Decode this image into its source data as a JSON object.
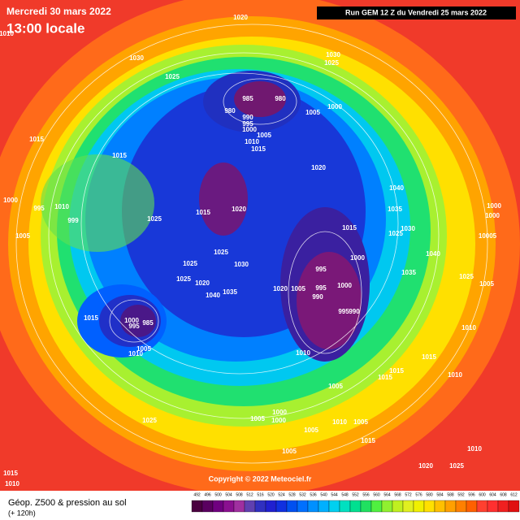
{
  "header": {
    "date": "Mercredi 30 mars 2022",
    "time": "13:00 locale",
    "run": "Run GEM 12 Z du Vendredi 25 mars 2022"
  },
  "footer": {
    "title": "Géop. Z500 & pression au sol",
    "lead": "(+ 120h)",
    "copyright": "Copyright © 2022 Meteociel.fr"
  },
  "isobars": [
    "1020",
    "1010",
    "1030",
    "1030",
    "1025",
    "1025",
    "985",
    "980",
    "980",
    "1000",
    "990",
    "995",
    "1005",
    "1000",
    "1005",
    "1010",
    "1015",
    "1015",
    "1015",
    "1020",
    "1040",
    "1000",
    "995",
    "1010",
    "999",
    "1015",
    "1020",
    "1025",
    "1035",
    "1000",
    "1005",
    "1015",
    "1025",
    "1030",
    "1000",
    "10005",
    "1025",
    "1030",
    "1000",
    "1040",
    "1025",
    "1035",
    "995",
    "1025",
    "1000",
    "1020",
    "1005",
    "995",
    "1025",
    "1005",
    "1020",
    "1035",
    "1040",
    "990",
    "1015",
    "1000",
    "995",
    "985",
    "995",
    "990",
    "1010",
    "1005",
    "1010",
    "1010",
    "1015",
    "1015",
    "1015",
    "1005",
    "1010",
    "1000",
    "1005",
    "1025",
    "1000",
    "1005",
    "1010",
    "1005",
    "1015",
    "1005",
    "1010",
    "1020",
    "1025",
    "1015",
    "1010"
  ],
  "legend": {
    "labels": [
      492,
      496,
      500,
      504,
      508,
      512,
      516,
      520,
      524,
      528,
      532,
      536,
      540,
      544,
      548,
      552,
      556,
      560,
      564,
      568,
      572,
      576,
      580,
      584,
      588,
      592,
      596,
      600,
      604,
      608,
      612
    ],
    "colors": [
      "#4b0040",
      "#5a0060",
      "#700080",
      "#8a1090",
      "#a030a0",
      "#6040b0",
      "#3030c0",
      "#2020d0",
      "#1030e0",
      "#0050f0",
      "#0070ff",
      "#0090ff",
      "#00b0ff",
      "#00d0f0",
      "#00e0c0",
      "#00e090",
      "#20e060",
      "#50f040",
      "#90f030",
      "#c0f020",
      "#e0f020",
      "#f0f000",
      "#ffe000",
      "#ffc000",
      "#ffa000",
      "#ff8000",
      "#ff6000",
      "#ff4030",
      "#ff3030",
      "#f02020",
      "#e01010"
    ]
  }
}
